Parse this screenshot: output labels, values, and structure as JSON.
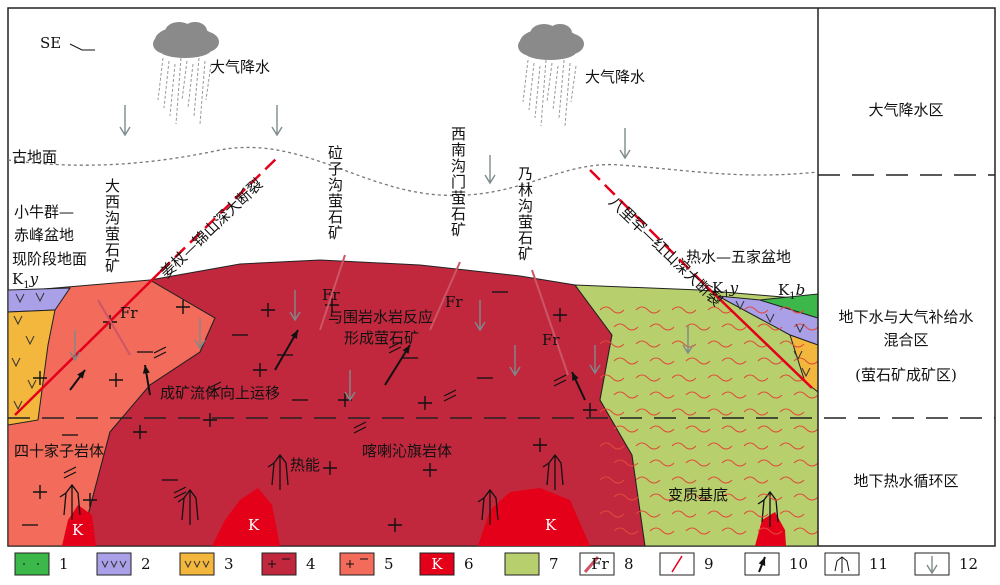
{
  "direction": "SE",
  "rain_labels": [
    "大气降水",
    "大气降水"
  ],
  "ancient_surface": "古地面",
  "left_basin": [
    "小牛群—",
    "赤峰盆地"
  ],
  "present_surface": "现阶段地面",
  "k1y": {
    "base": "K",
    "sub": "1",
    "suffix": "y"
  },
  "k1b": {
    "base": "K",
    "sub": "1",
    "suffix": "b"
  },
  "mines": [
    "大西沟萤石矿",
    "砬子沟萤石矿",
    "西南沟门萤石矿",
    "乃林沟萤石矿"
  ],
  "faults": [
    "姜杖—锦山深大断裂",
    "八里罕—红山深大断裂"
  ],
  "right_basin": "热水—五家盆地",
  "fr_labels": [
    "Fr",
    "Fr",
    "Fr",
    "Fr"
  ],
  "reaction": [
    "与围岩水岩反应",
    "形成萤石矿"
  ],
  "fluid": "成矿流体向上运移",
  "sishijiazi": "四十家子岩体",
  "heat": "热能",
  "harqin": "喀喇沁旗岩体",
  "basement": "变质基底",
  "k_labels": [
    "K",
    "K",
    "K"
  ],
  "zones": {
    "top": "大气降水区",
    "middle": [
      "地下水与大气补给水",
      "混合区"
    ],
    "middle_note": "(萤石矿成矿区)",
    "bottom": "地下热水循环区"
  },
  "legend": [
    {
      "number": "1"
    },
    {
      "number": "2"
    },
    {
      "number": "3"
    },
    {
      "number": "4"
    },
    {
      "number": "5"
    },
    {
      "number": "6",
      "symbol": "K"
    },
    {
      "number": "7"
    },
    {
      "number": "8",
      "symbol": "Fr"
    },
    {
      "number": "9"
    },
    {
      "number": "10"
    },
    {
      "number": "11"
    },
    {
      "number": "12"
    }
  ]
}
